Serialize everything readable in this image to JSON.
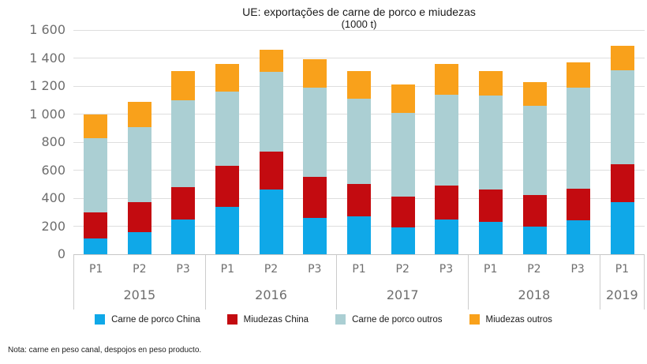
{
  "title": "UE: exportações de carne de porco e miudezas",
  "subtitle": "(1000 t)",
  "footnote": "Nota: carne en peso canal, despojos en peso producto.",
  "y_axis": {
    "labels": [
      "1 600",
      "1 400",
      "1 200",
      "1 000",
      "800",
      "600",
      "400",
      "200",
      "0"
    ],
    "max": 1600,
    "step": 200
  },
  "colors": {
    "carne_porco_china": "#0FA8E8",
    "miudezas_china": "#C30B10",
    "carne_porco_outros": "#ABCFD3",
    "miudezas_outros": "#F9A11B",
    "gridline": "#DEDEDE",
    "axis_text": "#6E6E6E"
  },
  "chart_data": {
    "type": "bar",
    "variant": "stacked",
    "title": "UE: exportações de carne de porco e miudezas",
    "unit": "1000 t",
    "ylim": [
      0,
      1600
    ],
    "grid": true,
    "legend_position": "bottom",
    "groups": [
      {
        "year": "2015",
        "periods": [
          "P1",
          "P2",
          "P3"
        ]
      },
      {
        "year": "2016",
        "periods": [
          "P1",
          "P2",
          "P3"
        ]
      },
      {
        "year": "2017",
        "periods": [
          "P1",
          "P2",
          "P3"
        ]
      },
      {
        "year": "2018",
        "periods": [
          "P1",
          "P2",
          "P3"
        ]
      },
      {
        "year": "2019",
        "periods": [
          "P1"
        ]
      }
    ],
    "categories": [
      "P1 2015",
      "P2 2015",
      "P3 2015",
      "P1 2016",
      "P2 2016",
      "P3 2016",
      "P1 2017",
      "P2 2017",
      "P3 2017",
      "P1 2018",
      "P2 2018",
      "P3 2018",
      "P1 2019"
    ],
    "series": [
      {
        "name": "Carne de porco China",
        "color": "#0FA8E8",
        "values": [
          110,
          160,
          250,
          340,
          460,
          260,
          270,
          190,
          250,
          230,
          200,
          240,
          370
        ]
      },
      {
        "name": "Miudezas China",
        "color": "#C30B10",
        "values": [
          190,
          210,
          230,
          290,
          270,
          290,
          230,
          220,
          240,
          230,
          220,
          230,
          270
        ]
      },
      {
        "name": "Carne de porco outros",
        "color": "#ABCFD3",
        "values": [
          530,
          540,
          620,
          530,
          570,
          640,
          610,
          600,
          650,
          670,
          640,
          720,
          670
        ]
      },
      {
        "name": "Miudezas outros",
        "color": "#F9A11B",
        "values": [
          170,
          180,
          210,
          200,
          160,
          200,
          200,
          200,
          220,
          180,
          170,
          180,
          180
        ]
      }
    ],
    "totals": [
      1000,
      1090,
      1310,
      1360,
      1460,
      1390,
      1310,
      1210,
      1360,
      1310,
      1230,
      1370,
      1490
    ]
  }
}
